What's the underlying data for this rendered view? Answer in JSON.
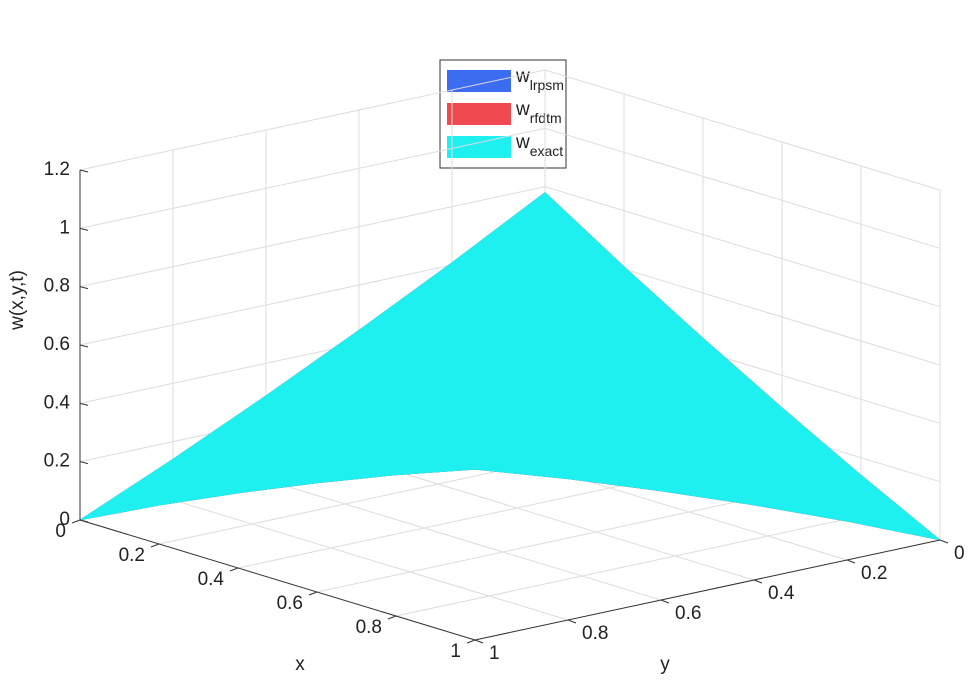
{
  "chart_data": {
    "type": "surface",
    "xlabel": "x",
    "ylabel": "y",
    "zlabel": "w(x,y,t)",
    "x": [
      0,
      0.2,
      0.4,
      0.6,
      0.8,
      1
    ],
    "y": [
      0,
      0.2,
      0.4,
      0.6,
      0.8,
      1
    ],
    "z": [
      [
        0.78,
        0.608,
        0.445,
        0.289,
        0.14,
        0
      ],
      [
        0.608,
        0.741,
        0.577,
        0.421,
        0.273,
        0.133
      ],
      [
        0.445,
        0.577,
        0.702,
        0.546,
        0.398,
        0.257
      ],
      [
        0.289,
        0.421,
        0.546,
        0.663,
        0.515,
        0.374
      ],
      [
        0.14,
        0.273,
        0.398,
        0.515,
        0.624,
        0.484
      ],
      [
        0,
        0.133,
        0.257,
        0.374,
        0.484,
        0.585
      ]
    ],
    "xlim": [
      0,
      1
    ],
    "ylim": [
      0,
      1
    ],
    "zlim": [
      0,
      1.2
    ],
    "xticks": [
      0,
      0.2,
      0.4,
      0.6,
      0.8,
      1
    ],
    "yticks": [
      0,
      0.2,
      0.4,
      0.6,
      0.8,
      1
    ],
    "zticks": [
      0,
      0.2,
      0.4,
      0.6,
      0.8,
      1,
      1.2
    ],
    "grid": true,
    "series": [
      {
        "name": "w",
        "subscript": "lrpsm",
        "color": "#3c6cf0"
      },
      {
        "name": "w",
        "subscript": "rfdtm",
        "color": "#f04a50"
      },
      {
        "name": "w",
        "subscript": "exact",
        "color": "#1ef0f0"
      }
    ]
  }
}
